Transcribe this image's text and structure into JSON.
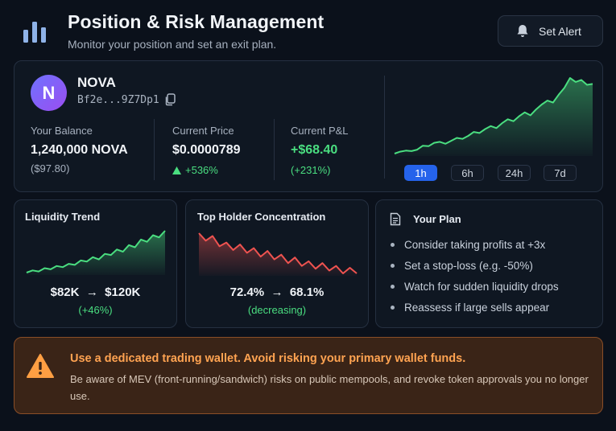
{
  "header": {
    "title": "Position & Risk Management",
    "subtitle": "Monitor your position and set an exit plan.",
    "alert_button": "Set Alert"
  },
  "token": {
    "avatar_letter": "N",
    "name": "NOVA",
    "address": "Bf2e...9Z7Dp1"
  },
  "stats": {
    "balance": {
      "label": "Your Balance",
      "value": "1,240,000 NOVA",
      "sub": "($97.80)"
    },
    "price": {
      "label": "Current Price",
      "value": "$0.0000789",
      "change": "+536%"
    },
    "pnl": {
      "label": "Current P&L",
      "value": "+$68.40",
      "sub": "(+231%)"
    }
  },
  "timeframes": [
    "1h",
    "6h",
    "24h",
    "7d"
  ],
  "selected_timeframe": "1h",
  "liquidity": {
    "title": "Liquidity Trend",
    "from": "$82K",
    "to": "$120K",
    "change": "(+46%)"
  },
  "holders": {
    "title": "Top Holder Concentration",
    "from": "72.4%",
    "to": "68.1%",
    "change": "(decreasing)"
  },
  "plan": {
    "title": "Your Plan",
    "items": [
      "Consider taking profits at +3x",
      "Set a stop-loss (e.g. -50%)",
      "Watch for sudden liquidity drops",
      "Reassess if large sells appear"
    ]
  },
  "warning": {
    "title": "Use a dedicated trading wallet. Avoid risking your primary wallet funds.",
    "body": "Be aware of MEV (front-running/sandwich) risks on public mempools, and revoke token approvals you no longer use."
  },
  "colors": {
    "up": "#4ade80",
    "down": "#ef5350",
    "accent": "#2563eb",
    "warning": "#ffa351"
  },
  "icons": {
    "logo": "bar-chart-icon",
    "alert": "bell-icon",
    "copy": "copy-icon",
    "plan": "document-icon",
    "warning": "warning-triangle-icon",
    "arrow": "arrow-right-icon",
    "up": "triangle-up-icon"
  },
  "chart_data": [
    {
      "type": "area",
      "series": [
        {
          "values": [
            8e-06,
            1e-05,
            1.1e-05,
            1.05e-05,
            1.2e-05,
            1.6e-05,
            1.55e-05,
            1.9e-05,
            2e-05,
            1.8e-05,
            2.1e-05,
            2.4e-05,
            2.3e-05,
            2.6e-05,
            3e-05,
            2.9e-05,
            3.3e-05,
            3.6e-05,
            3.4e-05,
            3.9e-05,
            4.3e-05,
            4.1e-05,
            4.6e-05,
            5e-05,
            4.7e-05,
            5.3e-05,
            5.8e-05,
            6.2e-05,
            6e-05,
            6.8e-05,
            7.5e-05,
            8.5e-05,
            8.1e-05,
            8.3e-05,
            7.8e-05,
            7.89e-05
          ]
        }
      ]
    },
    {
      "type": "area",
      "series": [
        {
          "values": [
            82,
            84,
            83,
            86,
            85,
            88,
            87,
            90,
            89,
            93,
            92,
            96,
            94,
            99,
            98,
            103,
            101,
            107,
            105,
            112,
            110,
            116,
            114,
            120
          ]
        }
      ]
    },
    {
      "type": "area",
      "series": [
        {
          "values": [
            72.4,
            71.6,
            72.1,
            71.0,
            71.4,
            70.6,
            71.2,
            70.3,
            70.8,
            69.9,
            70.5,
            69.6,
            70.1,
            69.2,
            69.8,
            68.9,
            69.4,
            68.6,
            69.2,
            68.4,
            68.9,
            68.1,
            68.7,
            68.1
          ]
        }
      ]
    }
  ]
}
